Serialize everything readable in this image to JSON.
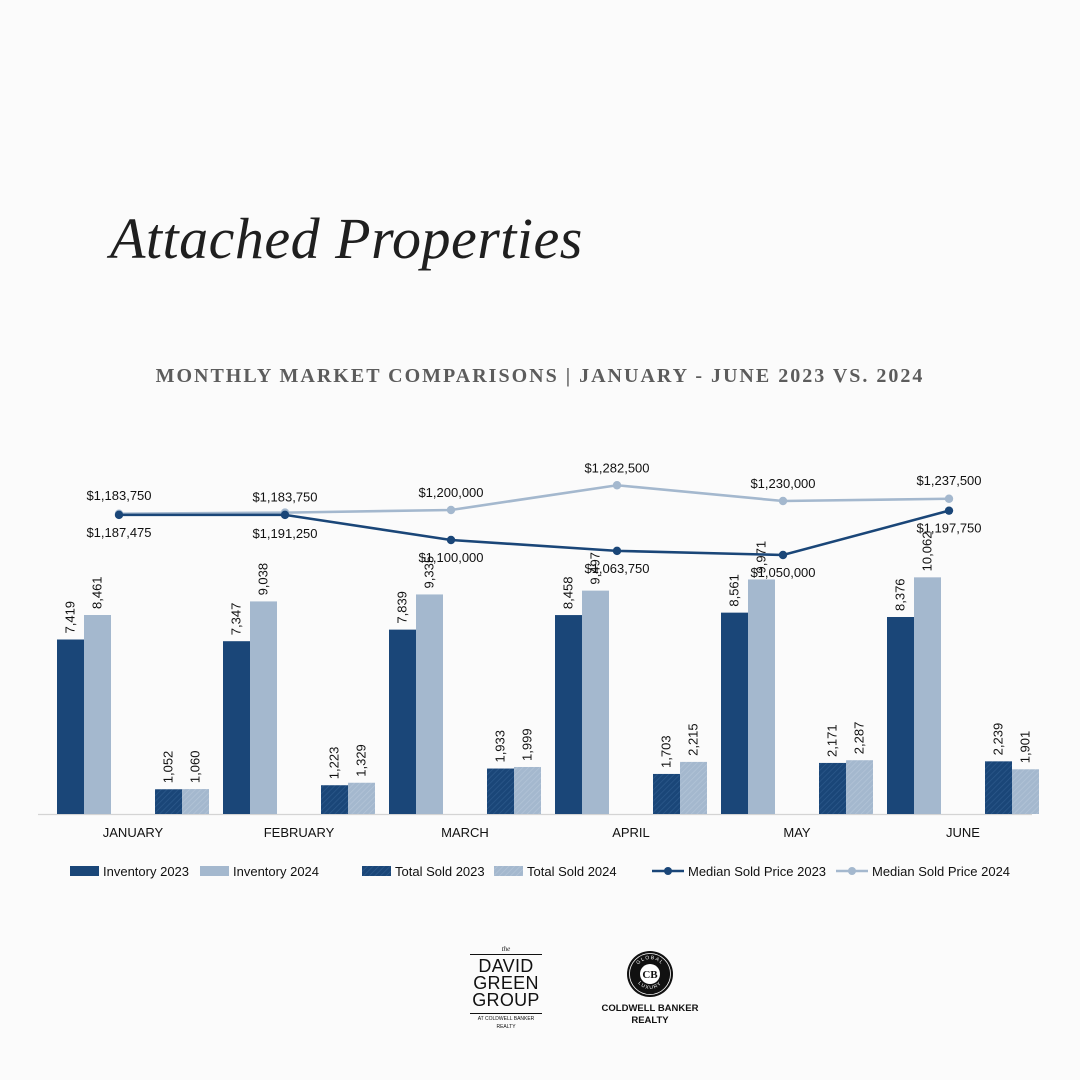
{
  "title": "Attached Properties",
  "subtitle": "MONTHLY MARKET COMPARISONS | JANUARY - JUNE 2023 VS. 2024",
  "colors": {
    "dark_blue": "#1a4678",
    "light_blue": "#a4b8ce",
    "axis": "#d4d4d4"
  },
  "chart_data": {
    "type": "bar",
    "categories": [
      "JANUARY",
      "FEBRUARY",
      "MARCH",
      "APRIL",
      "MAY",
      "JUNE"
    ],
    "series": [
      {
        "name": "Inventory 2023",
        "kind": "bar",
        "pattern": "solid",
        "color": "#1a4678",
        "values": [
          7419,
          7347,
          7839,
          8458,
          8561,
          8376
        ],
        "labels": [
          "7,419",
          "7,347",
          "7,839",
          "8,458",
          "8,561",
          "8,376"
        ]
      },
      {
        "name": "Inventory 2024",
        "kind": "bar",
        "pattern": "solid",
        "color": "#a4b8ce",
        "values": [
          8461,
          9038,
          9335,
          9497,
          9971,
          10062
        ],
        "labels": [
          "8,461",
          "9,038",
          "9,335",
          "9,497",
          "9,971",
          "10,062"
        ]
      },
      {
        "name": "Total Sold 2023",
        "kind": "bar",
        "pattern": "hatched",
        "color": "#1a4678",
        "values": [
          1052,
          1223,
          1933,
          1703,
          2171,
          2239
        ],
        "labels": [
          "1,052",
          "1,223",
          "1,933",
          "1,703",
          "2,171",
          "2,239"
        ]
      },
      {
        "name": "Total Sold 2024",
        "kind": "bar",
        "pattern": "hatched",
        "color": "#a4b8ce",
        "values": [
          1060,
          1329,
          1999,
          2215,
          2287,
          1901
        ],
        "labels": [
          "1,060",
          "1,329",
          "1,999",
          "2,215",
          "2,287",
          "1,901"
        ]
      },
      {
        "name": "Median Sold Price 2023",
        "kind": "line",
        "color": "#1a4678",
        "values": [
          1183750,
          1183750,
          1100000,
          1063750,
          1050000,
          1197750
        ],
        "labels": [
          "$1,183,750",
          "$1,183,750",
          "$1,100,000",
          "$1,063,750",
          "$1,050,000",
          "$1,197,750"
        ]
      },
      {
        "name": "Median Sold Price 2024",
        "kind": "line",
        "color": "#a4b8ce",
        "values": [
          1187475,
          1191250,
          1200000,
          1282500,
          1230000,
          1237500
        ],
        "labels": [
          "$1,187,475",
          "$1,191,250",
          "$1,200,000",
          "$1,282,500",
          "$1,230,000",
          "$1,237,500"
        ]
      }
    ],
    "bar_ylim": [
      0,
      12500
    ],
    "line_ylim": [
      1000000,
      1300000
    ],
    "legend_position": "bottom",
    "grid": false
  },
  "footer": {
    "dgg_the": "the",
    "dgg_line1": "DAVID",
    "dgg_line2": "GREEN",
    "dgg_line3": "GROUP",
    "dgg_small1": "AT COLDWELL BANKER",
    "dgg_small2": "REALTY",
    "cb_name_line1": "COLDWELL BANKER",
    "cb_name_line2": "REALTY",
    "cb_seal_top": "GLOBAL",
    "cb_seal_bottom": "LUXURY",
    "cb_seal_mark": "CB"
  }
}
